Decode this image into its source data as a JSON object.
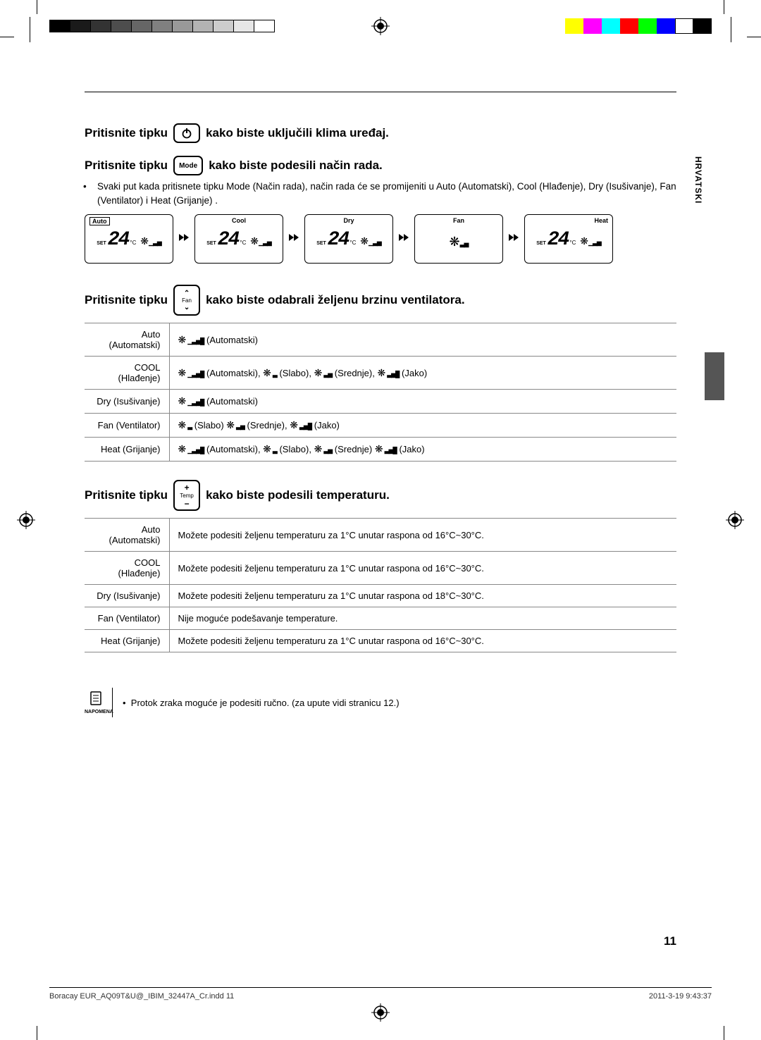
{
  "language_tab": "HRVATSKI",
  "reg_colors": [
    "#ffff00",
    "#ff00ff",
    "#00ffff",
    "#ff0000",
    "#00ff00",
    "#0000ff",
    "#ffffff",
    "#000000"
  ],
  "progress_shades": [
    "#000000",
    "#1a1a1a",
    "#333333",
    "#4d4d4d",
    "#666666",
    "#808080",
    "#999999",
    "#b3b3b3",
    "#cccccc",
    "#e6e6e6",
    "#ffffff"
  ],
  "sec1": {
    "pre": "Pritisnite tipku",
    "post": "kako biste uključili klima uređaj."
  },
  "sec2": {
    "pre": "Pritisnite tipku",
    "btn": "Mode",
    "post": "kako biste podesili način rada.",
    "note": "Svaki put kada pritisnete tipku Mode (Način rada), način rada će se promijeniti u Auto (Automatski), Cool (Hlađenje), Dry (Isušivanje), Fan (Ventilator) i Heat (Grijanje) .",
    "modes": [
      {
        "label": "Auto",
        "style": "boxed",
        "set": "SET",
        "temp": "24",
        "unit": "°C",
        "show_temp": true
      },
      {
        "label": "Cool",
        "style": "center",
        "set": "SET",
        "temp": "24",
        "unit": "°C",
        "show_temp": true
      },
      {
        "label": "Dry",
        "style": "center",
        "set": "SET",
        "temp": "24",
        "unit": "°C",
        "show_temp": true
      },
      {
        "label": "Fan",
        "style": "center",
        "show_temp": false
      },
      {
        "label": "Heat",
        "style": "right",
        "set": "SET",
        "temp": "24",
        "unit": "°C",
        "show_temp": true
      }
    ]
  },
  "sec3": {
    "pre": "Pritisnite tipku",
    "btn": "Fan",
    "post": "kako biste odabrali željenu brzinu ventilatora.",
    "rows": [
      {
        "mode": "Auto (Automatski)",
        "speeds": [
          {
            "g": "auto",
            "t": "(Automatski)"
          }
        ]
      },
      {
        "mode": "COOL (Hlađenje)",
        "speeds": [
          {
            "g": "auto",
            "t": "(Automatski),"
          },
          {
            "g": "low",
            "t": "(Slabo),"
          },
          {
            "g": "med",
            "t": "(Srednje),"
          },
          {
            "g": "high",
            "t": "(Jako)"
          }
        ]
      },
      {
        "mode": "Dry (Isušivanje)",
        "speeds": [
          {
            "g": "auto",
            "t": "(Automatski)"
          }
        ]
      },
      {
        "mode": "Fan (Ventilator)",
        "speeds": [
          {
            "g": "low",
            "t": "(Slabo)"
          },
          {
            "g": "med",
            "t": "(Srednje),"
          },
          {
            "g": "high",
            "t": "(Jako)"
          }
        ]
      },
      {
        "mode": "Heat (Grijanje)",
        "speeds": [
          {
            "g": "auto",
            "t": "(Automatski),"
          },
          {
            "g": "low",
            "t": "(Slabo),"
          },
          {
            "g": "med",
            "t": "(Srednje)"
          },
          {
            "g": "high",
            "t": "(Jako)"
          }
        ]
      }
    ]
  },
  "sec4": {
    "pre": "Pritisnite tipku",
    "btn": "Temp",
    "post": "kako biste podesili temperaturu.",
    "rows": [
      {
        "mode": "Auto (Automatski)",
        "desc": "Možete podesiti željenu temperaturu za 1°C unutar raspona od 16°C~30°C."
      },
      {
        "mode": "COOL (Hlađenje)",
        "desc": "Možete podesiti željenu temperaturu za 1°C unutar raspona od 16°C~30°C."
      },
      {
        "mode": "Dry (Isušivanje)",
        "desc": "Možete podesiti željenu temperaturu za 1°C unutar raspona od 18°C~30°C."
      },
      {
        "mode": "Fan (Ventilator)",
        "desc": "Nije moguće podešavanje temperature."
      },
      {
        "mode": "Heat (Grijanje)",
        "desc": "Možete podesiti željenu temperaturu za 1°C unutar raspona od 16°C~30°C."
      }
    ]
  },
  "note": {
    "caption": "NAPOMENA",
    "text": "Protok zraka moguće je podesiti ručno. (za upute vidi stranicu 12.)"
  },
  "page_number": "11",
  "footer": {
    "file": "Boracay EUR_AQ09T&U@_IBIM_32447A_Cr.indd   11",
    "date": "2011-3-19   9:43:37"
  },
  "glyph_bars": {
    "auto": "▁▃▅█",
    "low": "▃",
    "med": "▃▅",
    "high": "▃▅█"
  }
}
